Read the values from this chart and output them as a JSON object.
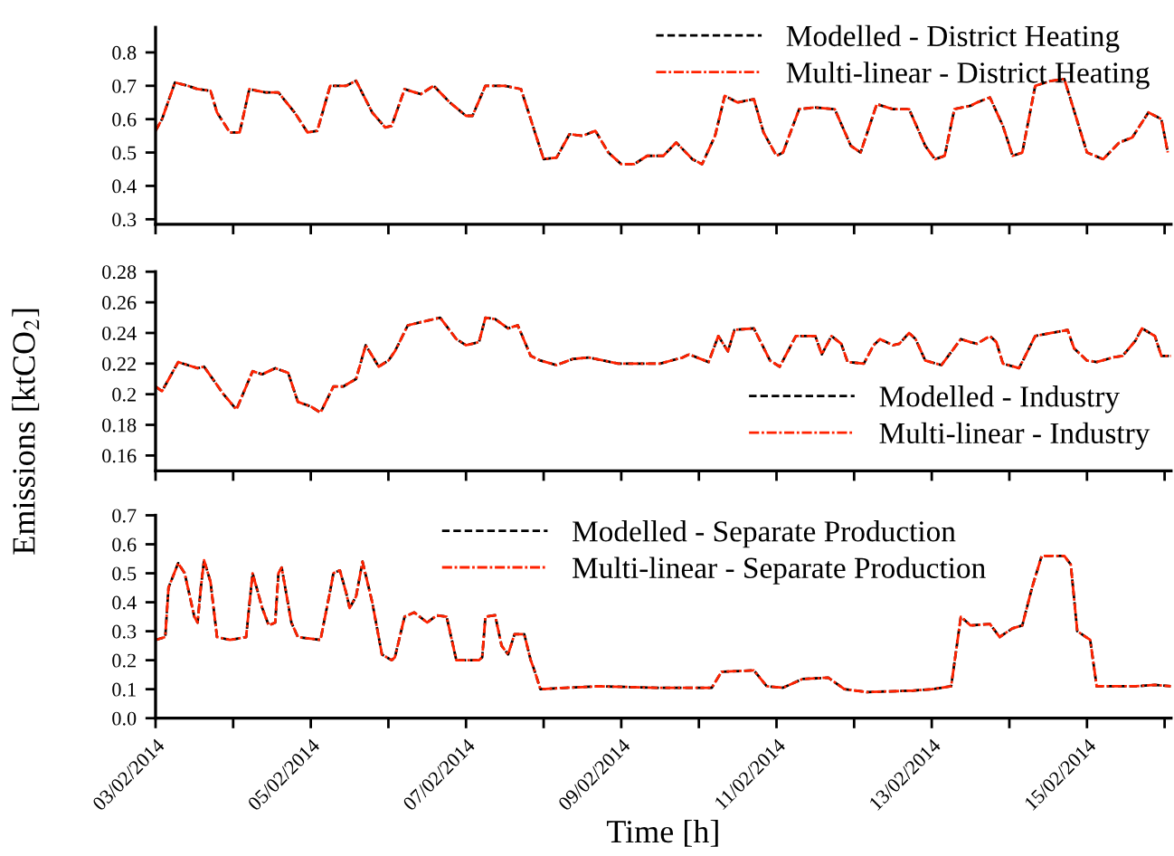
{
  "chart_data": [
    {
      "type": "line",
      "tick_labels": "y",
      "legend": "top right",
      "grid": false,
      "xlim": [
        "2014-02-03",
        "2014-02-16T02:00"
      ],
      "ylim": [
        0.285,
        0.875
      ],
      "yticks": [
        0.3,
        0.4,
        0.5,
        0.6,
        0.7,
        0.8
      ],
      "xticks": [
        {
          "value": "2014-02-03",
          "label": null
        },
        {
          "value": "2014-02-04",
          "label": null
        },
        {
          "value": "2014-02-05",
          "label": null
        },
        {
          "value": "2014-02-06",
          "label": null
        },
        {
          "value": "2014-02-07",
          "label": null
        },
        {
          "value": "2014-02-08",
          "label": null
        },
        {
          "value": "2014-02-09",
          "label": null
        },
        {
          "value": "2014-02-10",
          "label": null
        },
        {
          "value": "2014-02-11",
          "label": null
        },
        {
          "value": "2014-02-12",
          "label": null
        },
        {
          "value": "2014-02-13",
          "label": null
        },
        {
          "value": "2014-02-14",
          "label": null
        },
        {
          "value": "2014-02-15",
          "label": null
        },
        {
          "value": "2014-02-16",
          "label": null
        }
      ],
      "x": [
        "2014-02-03T00:00",
        "2014-02-03T02:00",
        "2014-02-03T06:00",
        "2014-02-03T10:00",
        "2014-02-03T13:00",
        "2014-02-03T17:00",
        "2014-02-03T19:00",
        "2014-02-03T23:00",
        "2014-02-04T02:00",
        "2014-02-04T05:00",
        "2014-02-04T10:00",
        "2014-02-04T14:00",
        "2014-02-04T19:00",
        "2014-02-04T23:00",
        "2014-02-05T02:00",
        "2014-02-05T06:00",
        "2014-02-05T11:00",
        "2014-02-05T14:00",
        "2014-02-05T19:00",
        "2014-02-05T23:00",
        "2014-02-06T01:00",
        "2014-02-06T05:00",
        "2014-02-06T10:00",
        "2014-02-06T14:00",
        "2014-02-06T19:00",
        "2014-02-07T00:00",
        "2014-02-07T02:00",
        "2014-02-07T06:00",
        "2014-02-07T12:00",
        "2014-02-07T17:00",
        "2014-02-07T20:00",
        "2014-02-08T00:00",
        "2014-02-08T04:00",
        "2014-02-08T08:00",
        "2014-02-08T12:00",
        "2014-02-08T16:00",
        "2014-02-08T20:00",
        "2014-02-09T00:00",
        "2014-02-09T04:00",
        "2014-02-09T08:00",
        "2014-02-09T13:00",
        "2014-02-09T17:00",
        "2014-02-09T22:00",
        "2014-02-10T01:00",
        "2014-02-10T05:00",
        "2014-02-10T08:00",
        "2014-02-10T12:00",
        "2014-02-10T17:00",
        "2014-02-10T20:00",
        "2014-02-11T00:00",
        "2014-02-11T02:00",
        "2014-02-11T07:00",
        "2014-02-11T12:00",
        "2014-02-11T18:00",
        "2014-02-11T23:00",
        "2014-02-12T02:00",
        "2014-02-12T07:00",
        "2014-02-12T12:00",
        "2014-02-12T17:00",
        "2014-02-12T22:00",
        "2014-02-13T01:00",
        "2014-02-13T04:00",
        "2014-02-13T07:00",
        "2014-02-13T12:00",
        "2014-02-13T14:00",
        "2014-02-13T18:00",
        "2014-02-13T22:00",
        "2014-02-14T01:00",
        "2014-02-14T04:00",
        "2014-02-14T08:00",
        "2014-02-14T13:00",
        "2014-02-14T17:00",
        "2014-02-15T00:00",
        "2014-02-15T05:00",
        "2014-02-15T10:00",
        "2014-02-15T14:00",
        "2014-02-15T19:00",
        "2014-02-15T23:00",
        "2014-02-16T01:00"
      ],
      "series": [
        {
          "name": "Modelled - District Heating",
          "color": "#000000",
          "line_style": "dashed",
          "values": [
            0.565,
            0.6,
            0.71,
            0.7,
            0.69,
            0.685,
            0.62,
            0.56,
            0.56,
            0.69,
            0.68,
            0.68,
            0.62,
            0.56,
            0.565,
            0.7,
            0.7,
            0.715,
            0.62,
            0.575,
            0.58,
            0.69,
            0.675,
            0.7,
            0.65,
            0.61,
            0.61,
            0.7,
            0.7,
            0.69,
            0.6,
            0.48,
            0.485,
            0.555,
            0.55,
            0.565,
            0.5,
            0.465,
            0.465,
            0.49,
            0.49,
            0.53,
            0.48,
            0.465,
            0.55,
            0.67,
            0.65,
            0.66,
            0.56,
            0.49,
            0.5,
            0.63,
            0.635,
            0.63,
            0.52,
            0.5,
            0.645,
            0.63,
            0.63,
            0.52,
            0.48,
            0.49,
            0.63,
            0.64,
            0.65,
            0.665,
            0.58,
            0.49,
            0.5,
            0.7,
            0.715,
            0.72,
            0.5,
            0.48,
            0.53,
            0.545,
            0.62,
            0.6,
            0.5
          ]
        },
        {
          "name": "Multi-linear - District Heating",
          "color": "#ff2200",
          "line_style": "dashed",
          "values": [
            0.565,
            0.6,
            0.71,
            0.7,
            0.69,
            0.685,
            0.62,
            0.56,
            0.56,
            0.69,
            0.68,
            0.68,
            0.62,
            0.56,
            0.565,
            0.7,
            0.7,
            0.715,
            0.62,
            0.575,
            0.58,
            0.69,
            0.675,
            0.7,
            0.65,
            0.61,
            0.61,
            0.7,
            0.7,
            0.69,
            0.6,
            0.48,
            0.485,
            0.555,
            0.55,
            0.565,
            0.5,
            0.465,
            0.465,
            0.49,
            0.49,
            0.53,
            0.48,
            0.465,
            0.55,
            0.67,
            0.65,
            0.66,
            0.56,
            0.49,
            0.5,
            0.63,
            0.635,
            0.63,
            0.52,
            0.5,
            0.645,
            0.63,
            0.63,
            0.52,
            0.48,
            0.49,
            0.63,
            0.64,
            0.65,
            0.665,
            0.58,
            0.49,
            0.5,
            0.7,
            0.715,
            0.72,
            0.5,
            0.48,
            0.53,
            0.545,
            0.62,
            0.6,
            0.5
          ]
        }
      ]
    },
    {
      "type": "line",
      "tick_labels": "y",
      "legend": "bottom right",
      "grid": false,
      "ylabel": "Emissions [ktCO$_{2}$]",
      "xlim": [
        "2014-02-03",
        "2014-02-16T02:00"
      ],
      "ylim": [
        0.15,
        0.28
      ],
      "yticks": [
        0.16,
        0.18,
        0.2,
        0.22,
        0.24,
        0.26,
        0.28
      ],
      "xticks": [
        {
          "value": "2014-02-03",
          "label": null
        },
        {
          "value": "2014-02-04",
          "label": null
        },
        {
          "value": "2014-02-05",
          "label": null
        },
        {
          "value": "2014-02-06",
          "label": null
        },
        {
          "value": "2014-02-07",
          "label": null
        },
        {
          "value": "2014-02-08",
          "label": null
        },
        {
          "value": "2014-02-09",
          "label": null
        },
        {
          "value": "2014-02-10",
          "label": null
        },
        {
          "value": "2014-02-11",
          "label": null
        },
        {
          "value": "2014-02-12",
          "label": null
        },
        {
          "value": "2014-02-13",
          "label": null
        },
        {
          "value": "2014-02-14",
          "label": null
        },
        {
          "value": "2014-02-15",
          "label": null
        },
        {
          "value": "2014-02-16",
          "label": null
        }
      ],
      "x": [
        "2014-02-03T00:00",
        "2014-02-03T02:00",
        "2014-02-03T07:00",
        "2014-02-03T13:00",
        "2014-02-03T15:00",
        "2014-02-03T21:00",
        "2014-02-04T01:00",
        "2014-02-04T06:00",
        "2014-02-04T09:00",
        "2014-02-04T13:00",
        "2014-02-04T17:00",
        "2014-02-04T20:00",
        "2014-02-05T00:00",
        "2014-02-05T03:00",
        "2014-02-05T07:00",
        "2014-02-05T10:00",
        "2014-02-05T14:00",
        "2014-02-05T17:00",
        "2014-02-05T21:00",
        "2014-02-06T00:00",
        "2014-02-06T02:00",
        "2014-02-06T06:00",
        "2014-02-06T12:00",
        "2014-02-06T16:00",
        "2014-02-06T21:00",
        "2014-02-07T00:00",
        "2014-02-07T04:00",
        "2014-02-07T06:00",
        "2014-02-07T09:00",
        "2014-02-07T13:00",
        "2014-02-07T16:00",
        "2014-02-07T20:00",
        "2014-02-07T23:00",
        "2014-02-08T04:00",
        "2014-02-08T09:00",
        "2014-02-08T14:00",
        "2014-02-08T23:00",
        "2014-02-09T12:00",
        "2014-02-09T19:00",
        "2014-02-09T21:00",
        "2014-02-10T03:00",
        "2014-02-10T06:00",
        "2014-02-10T09:00",
        "2014-02-10T11:00",
        "2014-02-10T17:00",
        "2014-02-10T22:00",
        "2014-02-11T01:00",
        "2014-02-11T06:00",
        "2014-02-11T12:00",
        "2014-02-11T14:00",
        "2014-02-11T17:00",
        "2014-02-11T20:00",
        "2014-02-11T22:00",
        "2014-02-12T03:00",
        "2014-02-12T06:00",
        "2014-02-12T08:00",
        "2014-02-12T12:00",
        "2014-02-12T14:00",
        "2014-02-12T17:00",
        "2014-02-12T19:00",
        "2014-02-12T22:00",
        "2014-02-13T03:00",
        "2014-02-13T09:00",
        "2014-02-13T12:00",
        "2014-02-13T14:00",
        "2014-02-13T18:00",
        "2014-02-13T20:00",
        "2014-02-13T22:00",
        "2014-02-14T03:00",
        "2014-02-14T08:00",
        "2014-02-14T13:00",
        "2014-02-14T18:00",
        "2014-02-14T20:00",
        "2014-02-15T00:00",
        "2014-02-15T03:00",
        "2014-02-15T08:00",
        "2014-02-15T11:00",
        "2014-02-15T15:00",
        "2014-02-15T17:00",
        "2014-02-15T21:00",
        "2014-02-15T23:00",
        "2014-02-16T02:00"
      ],
      "series": [
        {
          "name": "Modelled - Industry",
          "color": "#000000",
          "line_style": "dashed",
          "values": [
            0.205,
            0.202,
            0.221,
            0.217,
            0.218,
            0.2,
            0.19,
            0.215,
            0.213,
            0.217,
            0.214,
            0.195,
            0.192,
            0.188,
            0.205,
            0.205,
            0.21,
            0.232,
            0.218,
            0.222,
            0.228,
            0.245,
            0.248,
            0.25,
            0.236,
            0.232,
            0.234,
            0.25,
            0.249,
            0.243,
            0.245,
            0.225,
            0.222,
            0.219,
            0.223,
            0.224,
            0.22,
            0.22,
            0.224,
            0.226,
            0.221,
            0.238,
            0.228,
            0.242,
            0.243,
            0.222,
            0.218,
            0.238,
            0.238,
            0.226,
            0.238,
            0.233,
            0.221,
            0.22,
            0.232,
            0.236,
            0.232,
            0.233,
            0.24,
            0.236,
            0.222,
            0.219,
            0.236,
            0.234,
            0.233,
            0.238,
            0.234,
            0.22,
            0.217,
            0.238,
            0.24,
            0.242,
            0.23,
            0.222,
            0.221,
            0.224,
            0.225,
            0.235,
            0.243,
            0.238,
            0.225,
            0.225
          ]
        },
        {
          "name": "Multi-linear - Industry",
          "color": "#ff2200",
          "line_style": "dashed",
          "values": [
            0.205,
            0.202,
            0.221,
            0.217,
            0.218,
            0.2,
            0.19,
            0.215,
            0.213,
            0.217,
            0.214,
            0.195,
            0.192,
            0.188,
            0.205,
            0.205,
            0.21,
            0.232,
            0.218,
            0.222,
            0.228,
            0.245,
            0.248,
            0.25,
            0.236,
            0.232,
            0.234,
            0.25,
            0.249,
            0.243,
            0.245,
            0.225,
            0.222,
            0.219,
            0.223,
            0.224,
            0.22,
            0.22,
            0.224,
            0.226,
            0.221,
            0.238,
            0.228,
            0.242,
            0.243,
            0.222,
            0.218,
            0.238,
            0.238,
            0.226,
            0.238,
            0.233,
            0.221,
            0.22,
            0.232,
            0.236,
            0.232,
            0.233,
            0.24,
            0.236,
            0.222,
            0.219,
            0.236,
            0.234,
            0.233,
            0.238,
            0.234,
            0.22,
            0.217,
            0.238,
            0.24,
            0.242,
            0.23,
            0.222,
            0.221,
            0.224,
            0.225,
            0.235,
            0.243,
            0.238,
            0.225,
            0.225
          ]
        }
      ]
    },
    {
      "type": "line",
      "legend": "top",
      "grid": false,
      "xlabel": "Time [h]",
      "xlim": [
        "2014-02-03",
        "2014-02-16T02:00"
      ],
      "ylim": [
        0,
        0.7
      ],
      "yticks": [
        {
          "value": 0,
          "label": "0.0"
        },
        0.1,
        0.2,
        0.3,
        0.4,
        0.5,
        0.6,
        0.7
      ],
      "xticks": [
        {
          "value": "2014-02-03",
          "label": "03/02/2014"
        },
        {
          "value": "2014-02-04",
          "label": null
        },
        {
          "value": "2014-02-05",
          "label": "05/02/2014"
        },
        {
          "value": "2014-02-06",
          "label": null
        },
        {
          "value": "2014-02-07",
          "label": "07/02/2014"
        },
        {
          "value": "2014-02-08",
          "label": null
        },
        {
          "value": "2014-02-09",
          "label": "09/02/2014"
        },
        {
          "value": "2014-02-10",
          "label": null
        },
        {
          "value": "2014-02-11",
          "label": "11/02/2014"
        },
        {
          "value": "2014-02-12",
          "label": null
        },
        {
          "value": "2014-02-13",
          "label": "13/02/2014"
        },
        {
          "value": "2014-02-14",
          "label": null
        },
        {
          "value": "2014-02-15",
          "label": "15/02/2014"
        },
        {
          "value": "2014-02-16",
          "label": null
        }
      ],
      "x": [
        "2014-02-03T00:00",
        "2014-02-03T03:00",
        "2014-02-03T04:00",
        "2014-02-03T07:00",
        "2014-02-03T09:00",
        "2014-02-03T12:00",
        "2014-02-03T13:00",
        "2014-02-03T14:00",
        "2014-02-03T15:00",
        "2014-02-03T17:00",
        "2014-02-03T19:00",
        "2014-02-03T23:00",
        "2014-02-04T04:00",
        "2014-02-04T06:00",
        "2014-02-04T08:00",
        "2014-02-04T09:00",
        "2014-02-04T11:00",
        "2014-02-04T13:00",
        "2014-02-04T14:00",
        "2014-02-04T15:00",
        "2014-02-04T18:00",
        "2014-02-04T20:00",
        "2014-02-05T03:00",
        "2014-02-05T06:00",
        "2014-02-05T07:00",
        "2014-02-05T09:00",
        "2014-02-05T11:00",
        "2014-02-05T12:00",
        "2014-02-05T14:00",
        "2014-02-05T16:00",
        "2014-02-05T19:00",
        "2014-02-05T22:00",
        "2014-02-06T01:00",
        "2014-02-06T02:00",
        "2014-02-06T05:00",
        "2014-02-06T08:00",
        "2014-02-06T12:00",
        "2014-02-06T15:00",
        "2014-02-06T18:00",
        "2014-02-06T21:00",
        "2014-02-07T04:00",
        "2014-02-07T05:00",
        "2014-02-07T06:00",
        "2014-02-07T09:00",
        "2014-02-07T11:00",
        "2014-02-07T13:00",
        "2014-02-07T15:00",
        "2014-02-07T18:00",
        "2014-02-07T20:00",
        "2014-02-07T21:00",
        "2014-02-07T23:00",
        "2014-02-08T07:00",
        "2014-02-08T17:00",
        "2014-02-09T11:00",
        "2014-02-10T04:00",
        "2014-02-10T07:00",
        "2014-02-10T17:00",
        "2014-02-10T21:00",
        "2014-02-11T02:00",
        "2014-02-11T08:00",
        "2014-02-11T16:00",
        "2014-02-11T21:00",
        "2014-02-12T04:00",
        "2014-02-12T18:00",
        "2014-02-13T00:00",
        "2014-02-13T06:00",
        "2014-02-13T09:00",
        "2014-02-13T12:00",
        "2014-02-13T18:00",
        "2014-02-13T21:00",
        "2014-02-14T01:00",
        "2014-02-14T04:00",
        "2014-02-14T07:00",
        "2014-02-14T10:00",
        "2014-02-14T17:00",
        "2014-02-14T19:00",
        "2014-02-14T21:00",
        "2014-02-15T01:00",
        "2014-02-15T03:00",
        "2014-02-15T15:00",
        "2014-02-15T21:00",
        "2014-02-16T02:00"
      ],
      "series": [
        {
          "name": "Modelled - Separate Production",
          "color": "#000000",
          "line_style": "dashed",
          "values": [
            0.27,
            0.28,
            0.45,
            0.535,
            0.5,
            0.35,
            0.33,
            0.45,
            0.545,
            0.47,
            0.28,
            0.27,
            0.28,
            0.5,
            0.42,
            0.38,
            0.32,
            0.33,
            0.5,
            0.52,
            0.33,
            0.28,
            0.27,
            0.44,
            0.5,
            0.51,
            0.43,
            0.38,
            0.42,
            0.54,
            0.4,
            0.22,
            0.2,
            0.21,
            0.35,
            0.365,
            0.33,
            0.355,
            0.35,
            0.2,
            0.2,
            0.21,
            0.35,
            0.355,
            0.25,
            0.22,
            0.29,
            0.29,
            0.2,
            0.17,
            0.1,
            0.105,
            0.11,
            0.105,
            0.105,
            0.16,
            0.165,
            0.11,
            0.105,
            0.135,
            0.14,
            0.1,
            0.09,
            0.095,
            0.1,
            0.11,
            0.35,
            0.32,
            0.325,
            0.28,
            0.31,
            0.32,
            0.45,
            0.56,
            0.56,
            0.53,
            0.3,
            0.27,
            0.11,
            0.11,
            0.115,
            0.11
          ]
        },
        {
          "name": "Multi-linear - Separate Production",
          "color": "#ff2200",
          "line_style": "dashed",
          "values": [
            0.27,
            0.28,
            0.45,
            0.535,
            0.5,
            0.35,
            0.33,
            0.45,
            0.545,
            0.47,
            0.28,
            0.27,
            0.28,
            0.5,
            0.42,
            0.38,
            0.32,
            0.33,
            0.5,
            0.52,
            0.33,
            0.28,
            0.27,
            0.44,
            0.5,
            0.51,
            0.43,
            0.38,
            0.42,
            0.54,
            0.4,
            0.22,
            0.2,
            0.21,
            0.35,
            0.365,
            0.33,
            0.355,
            0.35,
            0.2,
            0.2,
            0.21,
            0.35,
            0.355,
            0.25,
            0.22,
            0.29,
            0.29,
            0.2,
            0.17,
            0.1,
            0.105,
            0.11,
            0.105,
            0.105,
            0.16,
            0.165,
            0.11,
            0.105,
            0.135,
            0.14,
            0.1,
            0.09,
            0.095,
            0.1,
            0.11,
            0.35,
            0.32,
            0.325,
            0.28,
            0.31,
            0.32,
            0.45,
            0.56,
            0.56,
            0.53,
            0.3,
            0.27,
            0.11,
            0.11,
            0.115,
            0.11
          ]
        }
      ]
    }
  ]
}
